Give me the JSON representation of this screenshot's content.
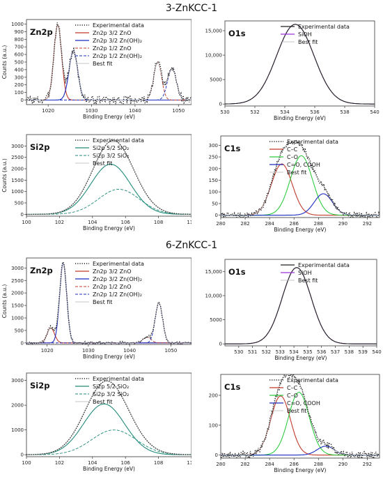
{
  "sections": [
    {
      "title": "3-ZnKCC-1"
    },
    {
      "title": "6-ZnKCC-1"
    }
  ],
  "colors": {
    "experimental": "#222222",
    "zno": "#c0392b",
    "znoh": "#1a2bbf",
    "sioh": "#9b30d9",
    "sio2": "#1f8a78",
    "cc": "#c0392b",
    "co": "#2ecc40",
    "cooh": "#1a2bbf",
    "fit": "#b0b0b0"
  },
  "chart_data": [
    {
      "type": "line",
      "title": "Zn2p",
      "xlabel": "Binding Energy (eV)",
      "ylabel": "Counts (a.u.)",
      "xlim": [
        1015,
        1053
      ],
      "ylim": [
        -60,
        1060
      ],
      "xticks": [
        1020,
        1030,
        1040,
        1050
      ],
      "yticks": [
        0,
        100,
        200,
        300,
        400,
        500,
        600,
        700,
        800,
        900,
        1000
      ],
      "legend": "top-right",
      "series": [
        {
          "name": "Experimental data",
          "style": "dotted",
          "color": "#222222",
          "noise": 55,
          "seed": 3,
          "peaks": [
            [
              1022.2,
              1000,
              0.9
            ],
            [
              1025.8,
              650,
              1.0
            ],
            [
              1045.2,
              500,
              0.9
            ],
            [
              1048.5,
              420,
              1.0
            ]
          ]
        },
        {
          "name": "Zn2p 3/2 ZnO",
          "style": "solid",
          "color": "#c0392b",
          "peaks": [
            [
              1022.2,
              990,
              0.9
            ]
          ]
        },
        {
          "name": "Zn2p 3/2 Zn(OH)₂",
          "style": "solid",
          "color": "#1a2bbf",
          "peaks": [
            [
              1025.8,
              650,
              1.0
            ]
          ]
        },
        {
          "name": "Zn2p 1/2 ZnO",
          "style": "dashed",
          "color": "#c0392b",
          "peaks": [
            [
              1045.2,
              500,
              0.9
            ]
          ]
        },
        {
          "name": "Zn2p 1/2 Zn(OH)₂",
          "style": "dashed",
          "color": "#1a2bbf",
          "peaks": [
            [
              1048.5,
              420,
              1.0
            ]
          ]
        },
        {
          "name": "Best fit",
          "style": "solid",
          "color": "#b0b0b0",
          "peaks": [
            [
              1022.2,
              990,
              0.9
            ],
            [
              1025.8,
              650,
              1.0
            ],
            [
              1045.2,
              500,
              0.9
            ],
            [
              1048.5,
              420,
              1.0
            ]
          ]
        }
      ]
    },
    {
      "type": "line",
      "title": "O1s",
      "xlabel": "Binding Energy (eV)",
      "ylabel": "",
      "xlim": [
        530,
        540
      ],
      "ylim": [
        -400,
        17000
      ],
      "xticks": [
        530,
        532,
        534,
        536,
        538,
        540
      ],
      "yticks": [
        0,
        5000,
        10000,
        15000
      ],
      "ytick_labels": [
        "0",
        "5000",
        "10,000",
        "15,000"
      ],
      "legend": "top-right",
      "series": [
        {
          "name": "Experimental data",
          "style": "solid",
          "color": "#222222",
          "peaks": [
            [
              534.7,
              16300,
              1.25
            ]
          ]
        },
        {
          "name": "SiOH",
          "style": "solid",
          "color": "#9b30d9",
          "peaks": [
            [
              534.7,
              16300,
              1.25
            ]
          ]
        },
        {
          "name": "Best fit",
          "style": "solid",
          "color": "#b0b0b0",
          "peaks": [
            [
              534.7,
              16300,
              1.25
            ]
          ]
        }
      ]
    },
    {
      "type": "line",
      "title": "Si2p",
      "xlabel": "Binding Energy (eV)",
      "ylabel": "Counts (a.u.)",
      "xlim": [
        100,
        110
      ],
      "ylim": [
        -80,
        3500
      ],
      "xticks": [
        100,
        102,
        104,
        106,
        108,
        110
      ],
      "yticks": [
        0,
        500,
        1000,
        1500,
        2000,
        2500,
        3000
      ],
      "legend": "top-right",
      "series": [
        {
          "name": "Experimental data",
          "style": "dotted",
          "color": "#222222",
          "peaks": [
            [
              105.1,
              2200,
              1.2
            ],
            [
              105.6,
              1100,
              1.25
            ]
          ]
        },
        {
          "name": "Si2p 5/2 SiO₂",
          "style": "solid",
          "color": "#1f8a78",
          "peaks": [
            [
              105.1,
              2200,
              1.2
            ]
          ]
        },
        {
          "name": "Si2p 3/2 SiO₂",
          "style": "dashed",
          "color": "#1f8a78",
          "peaks": [
            [
              105.6,
              1100,
              1.25
            ]
          ]
        },
        {
          "name": "Best fit",
          "style": "solid",
          "color": "#b0b0b0",
          "peaks": [
            [
              105.1,
              2200,
              1.2
            ],
            [
              105.6,
              1100,
              1.25
            ]
          ]
        }
      ]
    },
    {
      "type": "line",
      "title": "C1s",
      "xlabel": "Binding Energy (eV)",
      "ylabel": "",
      "xlim": [
        280,
        293
      ],
      "ylim": [
        -10,
        340
      ],
      "xticks": [
        280,
        282,
        284,
        286,
        288,
        290,
        292
      ],
      "yticks": [
        0,
        50,
        100,
        150,
        200,
        250,
        300
      ],
      "legend": "top-right",
      "series": [
        {
          "name": "Experimental data",
          "style": "dotted",
          "color": "#222222",
          "noise": 12,
          "seed": 7,
          "peaks": [
            [
              285.0,
              220,
              0.85
            ],
            [
              286.6,
              255,
              0.9
            ],
            [
              288.4,
              92,
              0.75
            ]
          ]
        },
        {
          "name": "C–C",
          "style": "solid",
          "color": "#c0392b",
          "peaks": [
            [
              285.0,
              220,
              0.85
            ]
          ]
        },
        {
          "name": "C–O",
          "style": "solid",
          "color": "#2ecc40",
          "peaks": [
            [
              286.6,
              255,
              0.9
            ]
          ]
        },
        {
          "name": "C=O, COOH",
          "style": "solid",
          "color": "#1a2bbf",
          "peaks": [
            [
              288.4,
              92,
              0.75
            ]
          ]
        },
        {
          "name": "Best fit",
          "style": "solid",
          "color": "#b0b0b0",
          "peaks": [
            [
              285.0,
              220,
              0.85
            ],
            [
              286.6,
              255,
              0.9
            ],
            [
              288.4,
              92,
              0.75
            ]
          ]
        }
      ]
    },
    {
      "type": "line",
      "title": "Zn2p",
      "xlabel": "Binding Energy (eV)",
      "ylabel": "Counts (a.u.)",
      "xlim": [
        1015,
        1055
      ],
      "ylim": [
        -60,
        3400
      ],
      "xticks": [
        1020,
        1030,
        1040,
        1050
      ],
      "yticks": [
        0,
        500,
        1000,
        1500,
        2000,
        2500,
        3000
      ],
      "legend": "top-right",
      "series": [
        {
          "name": "Experimental data",
          "style": "dotted",
          "color": "#222222",
          "noise": 60,
          "seed": 11,
          "peaks": [
            [
              1020.9,
              620,
              0.9
            ],
            [
              1023.9,
              3250,
              0.85
            ],
            [
              1044.2,
              230,
              1.0
            ],
            [
              1047.1,
              1600,
              0.9
            ]
          ]
        },
        {
          "name": "Zn2p 3/2 ZnO",
          "style": "solid",
          "color": "#c0392b",
          "peaks": [
            [
              1020.9,
              600,
              0.9
            ]
          ]
        },
        {
          "name": "Zn2p 3/2 Zn(OH)₂",
          "style": "solid",
          "color": "#1a2bbf",
          "peaks": [
            [
              1023.9,
              3200,
              0.85
            ]
          ]
        },
        {
          "name": "Zn2p 1/2 ZnO",
          "style": "dashed",
          "color": "#c0392b",
          "peaks": [
            [
              1044.2,
              230,
              1.0
            ]
          ]
        },
        {
          "name": "Zn2p 1/2 Zn(OH)₂",
          "style": "dashed",
          "color": "#1a2bbf",
          "peaks": [
            [
              1047.1,
              1600,
              0.9
            ]
          ]
        },
        {
          "name": "Best fit",
          "style": "solid",
          "color": "#b0b0b0",
          "peaks": [
            [
              1020.9,
              600,
              0.9
            ],
            [
              1023.9,
              3200,
              0.85
            ],
            [
              1044.2,
              230,
              1.0
            ],
            [
              1047.1,
              1600,
              0.9
            ]
          ]
        }
      ]
    },
    {
      "type": "line",
      "title": "O1s",
      "xlabel": "Binding Energy (eV)",
      "ylabel": "",
      "xlim": [
        529,
        540
      ],
      "ylim": [
        -400,
        17500
      ],
      "xticks": [
        530,
        531,
        532,
        533,
        534,
        535,
        536,
        537,
        538,
        539,
        540
      ],
      "yticks": [
        0,
        5000,
        10000,
        15000
      ],
      "ytick_labels": [
        "0",
        "5000",
        "10,000",
        "15,000"
      ],
      "legend": "top-right",
      "series": [
        {
          "name": "Experimental data",
          "style": "solid",
          "color": "#222222",
          "peaks": [
            [
              534.2,
              15800,
              1.05
            ]
          ]
        },
        {
          "name": "SiOH",
          "style": "solid",
          "color": "#9b30d9",
          "peaks": [
            [
              534.2,
              15800,
              1.05
            ]
          ]
        },
        {
          "name": "Best fit",
          "style": "solid",
          "color": "#b0b0b0",
          "peaks": [
            [
              534.2,
              15800,
              1.05
            ]
          ]
        }
      ]
    },
    {
      "type": "line",
      "title": "Si2p",
      "xlabel": "Binding Energy (eV)",
      "ylabel": "",
      "xlim": [
        100,
        110
      ],
      "ylim": [
        -80,
        3300
      ],
      "xticks": [
        100,
        102,
        104,
        106,
        108,
        110
      ],
      "yticks": [
        0,
        1000,
        2000,
        3000
      ],
      "legend": "top-right",
      "series": [
        {
          "name": "Experimental data",
          "style": "dotted",
          "color": "#222222",
          "peaks": [
            [
              104.7,
              2050,
              1.25
            ],
            [
              105.3,
              1000,
              1.35
            ]
          ]
        },
        {
          "name": "Si2p 5/2 SiO₂",
          "style": "solid",
          "color": "#1f8a78",
          "peaks": [
            [
              104.7,
              2050,
              1.25
            ]
          ]
        },
        {
          "name": "Si2p 3/2 SiO₂",
          "style": "dashed",
          "color": "#1f8a78",
          "peaks": [
            [
              105.3,
              1000,
              1.35
            ]
          ]
        },
        {
          "name": "Best fit",
          "style": "solid",
          "color": "#b0b0b0",
          "peaks": [
            [
              104.7,
              2050,
              1.25
            ],
            [
              105.3,
              1000,
              1.35
            ]
          ]
        }
      ]
    },
    {
      "type": "line",
      "title": "C1s",
      "xlabel": "Binding Energy (eV)",
      "ylabel": "",
      "xlim": [
        280,
        293
      ],
      "ylim": [
        -10,
        270
      ],
      "xticks": [
        280,
        282,
        284,
        286,
        288,
        290,
        292
      ],
      "yticks": [
        0,
        100,
        200
      ],
      "legend": "top-right",
      "series": [
        {
          "name": "Experimental data",
          "style": "dotted",
          "color": "#222222",
          "noise": 12,
          "seed": 19,
          "peaks": [
            [
              284.9,
              198,
              0.8
            ],
            [
              286.4,
              210,
              0.85
            ],
            [
              288.6,
              30,
              0.7
            ]
          ]
        },
        {
          "name": "C–C",
          "style": "solid",
          "color": "#c0392b",
          "peaks": [
            [
              284.9,
              198,
              0.8
            ]
          ]
        },
        {
          "name": "C–O",
          "style": "solid",
          "color": "#2ecc40",
          "peaks": [
            [
              286.4,
              210,
              0.85
            ]
          ]
        },
        {
          "name": "C=O, COOH",
          "style": "solid",
          "color": "#1a2bbf",
          "peaks": [
            [
              288.6,
              30,
              0.7
            ]
          ]
        },
        {
          "name": "Best fit",
          "style": "solid",
          "color": "#b0b0b0",
          "peaks": [
            [
              284.9,
              198,
              0.8
            ],
            [
              286.4,
              210,
              0.85
            ],
            [
              288.6,
              30,
              0.7
            ]
          ]
        }
      ]
    }
  ]
}
